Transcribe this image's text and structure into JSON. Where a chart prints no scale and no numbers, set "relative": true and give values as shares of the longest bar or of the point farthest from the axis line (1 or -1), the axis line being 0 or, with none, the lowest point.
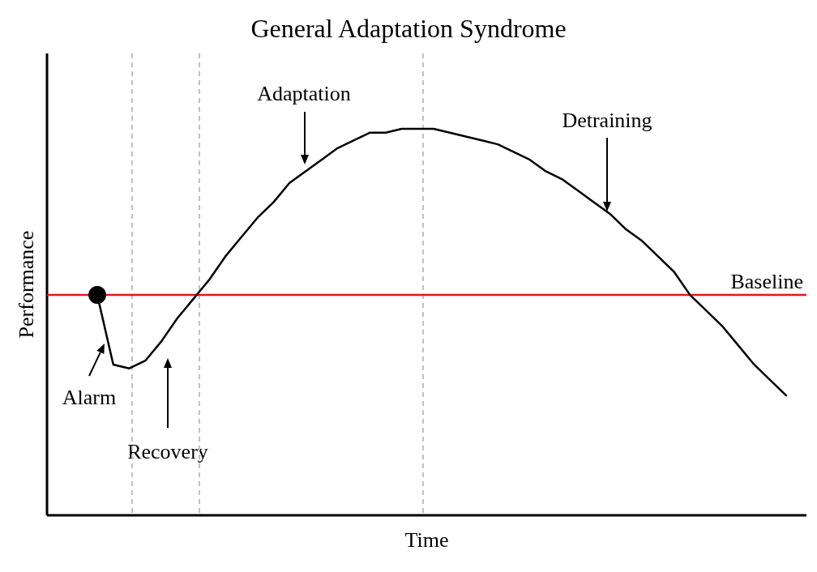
{
  "chart_data": {
    "type": "line",
    "title": "General Adaptation Syndrome",
    "xlabel": "Time",
    "ylabel": "Performance",
    "relative": true,
    "categories": [
      null,
      null,
      null,
      null,
      null,
      null,
      null,
      null,
      null,
      null,
      null,
      null,
      null,
      null,
      null,
      null,
      null,
      null,
      null,
      null,
      null,
      null,
      null,
      null,
      null,
      null,
      null,
      null,
      null,
      null,
      null,
      null,
      null,
      null,
      null,
      null,
      null,
      null,
      null,
      null,
      null,
      null,
      null,
      null
    ],
    "series": [
      {
        "color": "#000000",
        "line_style": "solid",
        "values": [
          0.57,
          0.39,
          0.38,
          0.4,
          0.45,
          0.51,
          0.56,
          0.61,
          0.67,
          0.72,
          0.77,
          0.81,
          0.86,
          0.89,
          0.92,
          0.95,
          0.97,
          0.99,
          0.99,
          1.0,
          1.0,
          1.0,
          0.99,
          0.98,
          0.97,
          0.96,
          0.94,
          0.92,
          0.89,
          0.87,
          0.84,
          0.81,
          0.78,
          0.74,
          0.71,
          0.67,
          0.63,
          0.57,
          0.53,
          0.49,
          0.44,
          0.39,
          0.35,
          0.31
        ]
      }
    ],
    "ref_lines": [
      {
        "axis": "y",
        "value": 0.57,
        "label": "Baseline",
        "color": "#e8141b",
        "line_style": "solid"
      }
    ],
    "annotations": [
      "Alarm",
      "Recovery",
      "Adaptation",
      "Detraining"
    ]
  }
}
